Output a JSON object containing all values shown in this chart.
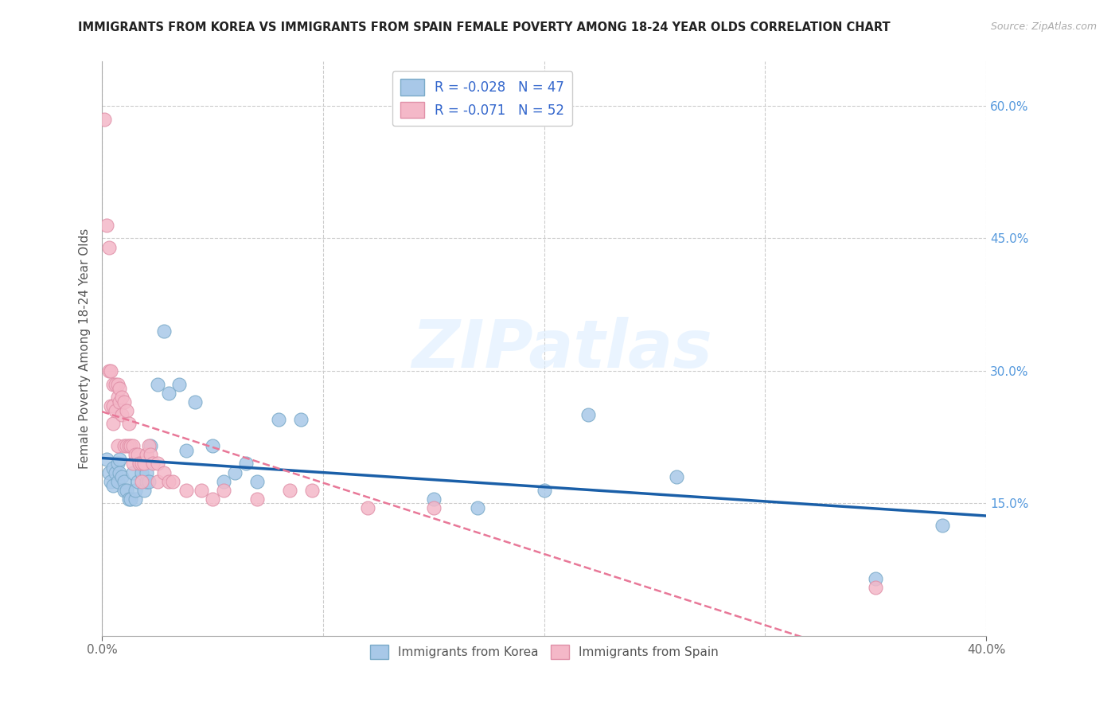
{
  "title": "IMMIGRANTS FROM KOREA VS IMMIGRANTS FROM SPAIN FEMALE POVERTY AMONG 18-24 YEAR OLDS CORRELATION CHART",
  "source": "Source: ZipAtlas.com",
  "ylabel": "Female Poverty Among 18-24 Year Olds",
  "xlim": [
    0.0,
    0.4
  ],
  "ylim": [
    0.0,
    0.65
  ],
  "xticks": [
    0.0,
    0.4
  ],
  "xticklabels": [
    "0.0%",
    "40.0%"
  ],
  "yticks_right": [
    0.6,
    0.45,
    0.3,
    0.15
  ],
  "yticklabels_right": [
    "60.0%",
    "45.0%",
    "30.0%",
    "15.0%"
  ],
  "korea_color": "#a8c8e8",
  "korea_color_edge": "#7aaac8",
  "spain_color": "#f4b8c8",
  "spain_color_edge": "#e090a8",
  "korea_line_color": "#1a5fa8",
  "spain_line_color": "#e87898",
  "korea_R": -0.028,
  "korea_N": 47,
  "spain_R": -0.071,
  "spain_N": 52,
  "legend_korea_label": "Immigrants from Korea",
  "legend_spain_label": "Immigrants from Spain",
  "background_color": "#ffffff",
  "grid_color": "#cccccc",
  "watermark_text": "ZIPatlas",
  "korea_x": [
    0.002,
    0.003,
    0.004,
    0.005,
    0.005,
    0.006,
    0.007,
    0.007,
    0.008,
    0.008,
    0.009,
    0.01,
    0.01,
    0.011,
    0.012,
    0.013,
    0.014,
    0.015,
    0.015,
    0.016,
    0.017,
    0.018,
    0.019,
    0.02,
    0.02,
    0.021,
    0.022,
    0.025,
    0.028,
    0.03,
    0.035,
    0.038,
    0.042,
    0.05,
    0.055,
    0.06,
    0.065,
    0.07,
    0.08,
    0.09,
    0.15,
    0.17,
    0.2,
    0.22,
    0.26,
    0.35,
    0.38
  ],
  "korea_y": [
    0.2,
    0.185,
    0.175,
    0.19,
    0.17,
    0.185,
    0.175,
    0.195,
    0.2,
    0.185,
    0.18,
    0.175,
    0.165,
    0.165,
    0.155,
    0.155,
    0.185,
    0.155,
    0.165,
    0.175,
    0.195,
    0.185,
    0.165,
    0.175,
    0.185,
    0.175,
    0.215,
    0.285,
    0.345,
    0.275,
    0.285,
    0.21,
    0.265,
    0.215,
    0.175,
    0.185,
    0.195,
    0.175,
    0.245,
    0.245,
    0.155,
    0.145,
    0.165,
    0.25,
    0.18,
    0.065,
    0.125
  ],
  "spain_x": [
    0.001,
    0.002,
    0.003,
    0.003,
    0.004,
    0.004,
    0.005,
    0.005,
    0.005,
    0.006,
    0.006,
    0.007,
    0.007,
    0.007,
    0.008,
    0.008,
    0.009,
    0.009,
    0.01,
    0.01,
    0.011,
    0.011,
    0.012,
    0.012,
    0.013,
    0.014,
    0.014,
    0.015,
    0.016,
    0.017,
    0.018,
    0.018,
    0.019,
    0.02,
    0.021,
    0.022,
    0.023,
    0.025,
    0.025,
    0.028,
    0.03,
    0.032,
    0.038,
    0.045,
    0.05,
    0.055,
    0.07,
    0.085,
    0.095,
    0.12,
    0.15,
    0.35
  ],
  "spain_y": [
    0.585,
    0.465,
    0.44,
    0.3,
    0.3,
    0.26,
    0.285,
    0.26,
    0.24,
    0.285,
    0.255,
    0.285,
    0.27,
    0.215,
    0.28,
    0.265,
    0.27,
    0.25,
    0.265,
    0.215,
    0.255,
    0.215,
    0.24,
    0.215,
    0.215,
    0.215,
    0.195,
    0.205,
    0.205,
    0.195,
    0.195,
    0.175,
    0.195,
    0.205,
    0.215,
    0.205,
    0.195,
    0.195,
    0.175,
    0.185,
    0.175,
    0.175,
    0.165,
    0.165,
    0.155,
    0.165,
    0.155,
    0.165,
    0.165,
    0.145,
    0.145,
    0.055
  ]
}
